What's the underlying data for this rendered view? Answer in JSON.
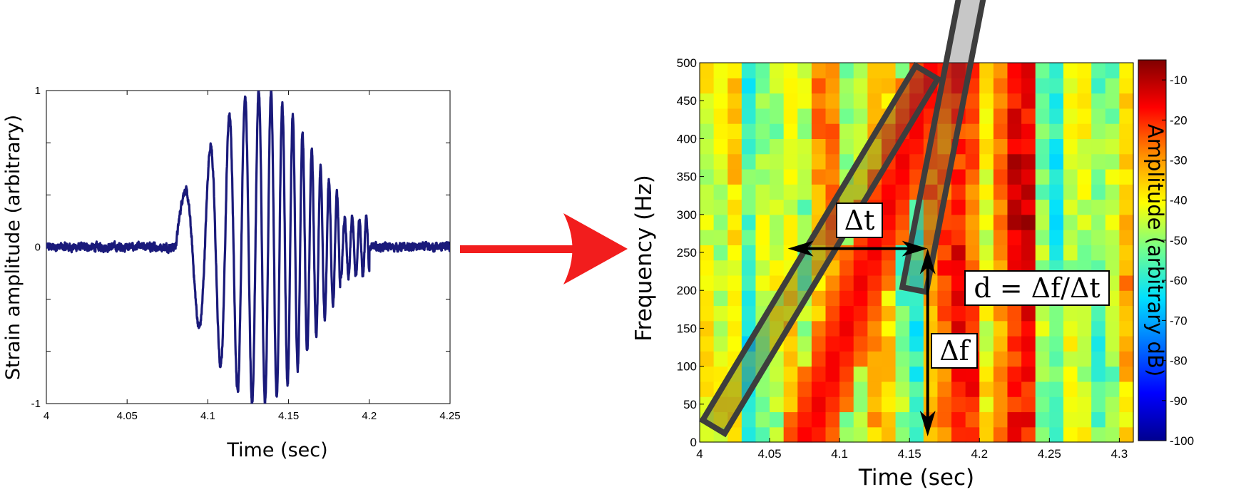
{
  "chart_data": [
    {
      "type": "line",
      "xlabel": "Time (sec)",
      "ylabel": "Strain amplitude (arbitrary)",
      "xlim": [
        4,
        4.25
      ],
      "ylim": [
        -1,
        1
      ],
      "xticks": [
        "4",
        "4.05",
        "4.1",
        "4.15",
        "4.2",
        "4.25"
      ],
      "yticks": [
        "1",
        "0",
        "-1"
      ],
      "series_color": "#1a1a7a",
      "signal": {
        "chirp_start": 4.08,
        "chirp_end": 4.2,
        "peak_time": 4.15,
        "peak_amplitude": 1.0,
        "freq_start_hz": 40,
        "freq_end_hz": 400,
        "noise_amplitude": 0.04
      }
    },
    {
      "type": "heatmap",
      "xlabel": "Time (sec)",
      "ylabel": "Frequency (Hz)",
      "xlim": [
        4,
        4.31
      ],
      "ylim": [
        0,
        500
      ],
      "xticks": [
        "4",
        "4.05",
        "4.1",
        "4.15",
        "4.2",
        "4.25",
        "4.3"
      ],
      "yticks": [
        "0",
        "50",
        "100",
        "150",
        "200",
        "250",
        "300",
        "350",
        "400",
        "450",
        "500"
      ],
      "colorbar_label": "Amplitude (arbitrary dB)",
      "colorbar_ticks": [
        "-10",
        "-20",
        "-30",
        "-40",
        "-50",
        "-60",
        "-70",
        "-80",
        "-90",
        "-100"
      ],
      "colorbar_range": [
        -100,
        -5
      ],
      "time_columns": [
        4.005,
        4.015,
        4.025,
        4.035,
        4.045,
        4.055,
        4.065,
        4.075,
        4.085,
        4.095,
        4.105,
        4.115,
        4.125,
        4.135,
        4.145,
        4.155,
        4.165,
        4.175,
        4.185,
        4.195,
        4.205,
        4.215,
        4.225,
        4.235,
        4.245,
        4.255,
        4.265,
        4.275,
        4.285,
        4.295,
        4.305
      ],
      "column_base_db": [
        -42,
        -44,
        -38,
        -58,
        -48,
        -46,
        -40,
        -48,
        -32,
        -30,
        -50,
        -44,
        -32,
        -38,
        -52,
        -56,
        -30,
        -25,
        -18,
        -22,
        -42,
        -28,
        -16,
        -14,
        -50,
        -58,
        -44,
        -46,
        -54,
        -48,
        -34
      ],
      "ridge": {
        "t_start": 4.08,
        "t_end": 4.17,
        "f_start": 20,
        "f_end": 500,
        "db": -15
      },
      "annotations": {
        "dt_label": "Δt",
        "df_label": "Δf",
        "slope_label": "d = Δf/Δt",
        "arrow_point": {
          "t": 4.163,
          "f": 255
        },
        "dt_arrow_left_t": 4.063,
        "df_arrow_bottom_f": 0
      }
    }
  ],
  "colors": {
    "arrow": "#f21d1d",
    "box_outline": "#3d3d3d"
  }
}
